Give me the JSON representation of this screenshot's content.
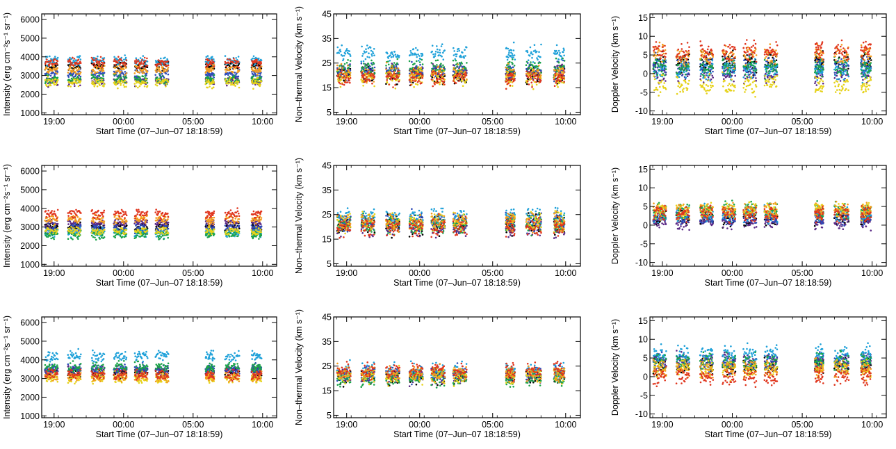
{
  "figure": {
    "colors": [
      "#000000",
      "#5b2a86",
      "#2e4bb8",
      "#1fa1d9",
      "#1ba34a",
      "#e6d21a",
      "#f29c1f",
      "#e0361e"
    ]
  },
  "chart_data": [
    {
      "type": "scatter",
      "panel": "r1c1",
      "xlabel": "Start Time (07–Jun–07 18:18:59)",
      "ylabel": "Intensity (erg cm⁻²s⁻¹ sr⁻¹)",
      "x_ticks": [
        "19:00",
        "00:00",
        "05:00",
        "10:00"
      ],
      "x_tick_hours": [
        0.69,
        5.69,
        10.69,
        15.69
      ],
      "xlim": [
        -0.2,
        16.7
      ],
      "ylim": [
        900,
        6300
      ],
      "y_ticks": [
        1000,
        2000,
        3000,
        4000,
        5000,
        6000
      ],
      "series_levels": [
        3500,
        2700,
        3100,
        3800,
        2800,
        2600,
        3300,
        3700
      ],
      "spread": 180,
      "seed": 11
    },
    {
      "type": "scatter",
      "panel": "r1c2",
      "xlabel": "Start Time (07–Jun–07 18:18:59)",
      "ylabel": "Non–thermal Velocity (km s⁻¹)",
      "x_ticks": [
        "19:00",
        "00:00",
        "05:00",
        "10:00"
      ],
      "x_tick_hours": [
        0.69,
        5.69,
        10.69,
        15.69
      ],
      "xlim": [
        -0.2,
        16.7
      ],
      "ylim": [
        4,
        45
      ],
      "y_ticks": [
        5,
        15,
        25,
        35,
        45
      ],
      "series_levels": [
        20,
        21,
        22,
        29,
        23,
        19,
        21,
        19
      ],
      "spread": 2.5,
      "seed": 23
    },
    {
      "type": "scatter",
      "panel": "r1c3",
      "xlabel": "Start Time (07–Jun–07 18:18:59)",
      "ylabel": "Doppler Velocity (km s⁻¹)",
      "x_ticks": [
        "19:00",
        "00:00",
        "05:00",
        "10:00"
      ],
      "x_tick_hours": [
        0.69,
        5.69,
        10.69,
        15.69
      ],
      "xlim": [
        -0.2,
        16.7
      ],
      "ylim": [
        -11,
        16
      ],
      "y_ticks": [
        -10,
        -5,
        0,
        5,
        10,
        15
      ],
      "series_levels": [
        3,
        0,
        2,
        1,
        2,
        -3,
        5,
        6
      ],
      "spread": 2.0,
      "seed": 37
    },
    {
      "type": "scatter",
      "panel": "r2c1",
      "xlabel": "Start Time (07–Jun–07 18:18:59)",
      "ylabel": "Intensity (erg cm⁻²s⁻¹ sr⁻¹)",
      "x_ticks": [
        "19:00",
        "00:00",
        "05:00",
        "10:00"
      ],
      "x_tick_hours": [
        0.69,
        5.69,
        10.69,
        15.69
      ],
      "xlim": [
        -0.2,
        16.7
      ],
      "ylim": [
        900,
        6300
      ],
      "y_ticks": [
        1000,
        2000,
        3000,
        4000,
        5000,
        6000
      ],
      "series_levels": [
        3000,
        3200,
        2900,
        2700,
        2600,
        2800,
        3400,
        3700
      ],
      "spread": 170,
      "seed": 41
    },
    {
      "type": "scatter",
      "panel": "r2c2",
      "xlabel": "Start Time (07–Jun–07 18:18:59)",
      "ylabel": "Non–thermal Velocity (km s⁻¹)",
      "x_ticks": [
        "19:00",
        "00:00",
        "05:00",
        "10:00"
      ],
      "x_tick_hours": [
        0.69,
        5.69,
        10.69,
        15.69
      ],
      "xlim": [
        -0.2,
        16.7
      ],
      "ylim": [
        4,
        45
      ],
      "y_ticks": [
        5,
        15,
        25,
        35,
        45
      ],
      "series_levels": [
        21,
        20,
        22,
        24,
        21,
        22,
        22,
        20
      ],
      "spread": 3.0,
      "seed": 53
    },
    {
      "type": "scatter",
      "panel": "r2c3",
      "xlabel": "Start Time (07–Jun–07 18:18:59)",
      "ylabel": "Doppler Velocity (km s⁻¹)",
      "x_ticks": [
        "19:00",
        "00:00",
        "05:00",
        "10:00"
      ],
      "x_tick_hours": [
        0.69,
        5.69,
        10.69,
        15.69
      ],
      "xlim": [
        -0.2,
        16.7
      ],
      "ylim": [
        -11,
        16
      ],
      "y_ticks": [
        -10,
        -5,
        0,
        5,
        10,
        15
      ],
      "series_levels": [
        2,
        1,
        2,
        3,
        4,
        4,
        4,
        3
      ],
      "spread": 1.6,
      "seed": 67
    },
    {
      "type": "scatter",
      "panel": "r3c1",
      "xlabel": "Start Time (07–Jun–07 18:18:59)",
      "ylabel": "Intensity (erg cm⁻²s⁻¹ sr⁻¹)",
      "x_ticks": [
        "19:00",
        "00:00",
        "05:00",
        "10:00"
      ],
      "x_tick_hours": [
        0.69,
        5.69,
        10.69,
        15.69
      ],
      "xlim": [
        -0.2,
        16.7
      ],
      "ylim": [
        900,
        6300
      ],
      "y_ticks": [
        1000,
        2000,
        3000,
        4000,
        5000,
        6000
      ],
      "series_levels": [
        3300,
        3400,
        3500,
        4200,
        3600,
        3000,
        3100,
        3200
      ],
      "spread": 200,
      "seed": 79
    },
    {
      "type": "scatter",
      "panel": "r3c2",
      "xlabel": "Start Time (07–Jun–07 18:18:59)",
      "ylabel": "Non–thermal Velocity (km s⁻¹)",
      "x_ticks": [
        "19:00",
        "00:00",
        "05:00",
        "10:00"
      ],
      "x_tick_hours": [
        0.69,
        5.69,
        10.69,
        15.69
      ],
      "xlim": [
        -0.2,
        16.7
      ],
      "ylim": [
        4,
        45
      ],
      "y_ticks": [
        5,
        15,
        25,
        35,
        45
      ],
      "series_levels": [
        21,
        21,
        22,
        23,
        20,
        21,
        22,
        23
      ],
      "spread": 2.5,
      "seed": 83
    },
    {
      "type": "scatter",
      "panel": "r3c3",
      "xlabel": "Start Time (07–Jun–07 18:18:59)",
      "ylabel": "Doppler Velocity (km s⁻¹)",
      "x_ticks": [
        "19:00",
        "00:00",
        "05:00",
        "10:00"
      ],
      "x_tick_hours": [
        0.69,
        5.69,
        10.69,
        15.69
      ],
      "xlim": [
        -0.2,
        16.7
      ],
      "ylim": [
        -11,
        16
      ],
      "y_ticks": [
        -10,
        -5,
        0,
        5,
        10,
        15
      ],
      "series_levels": [
        3,
        4,
        4,
        6,
        4,
        2,
        2,
        0
      ],
      "spread": 1.8,
      "seed": 97
    }
  ]
}
